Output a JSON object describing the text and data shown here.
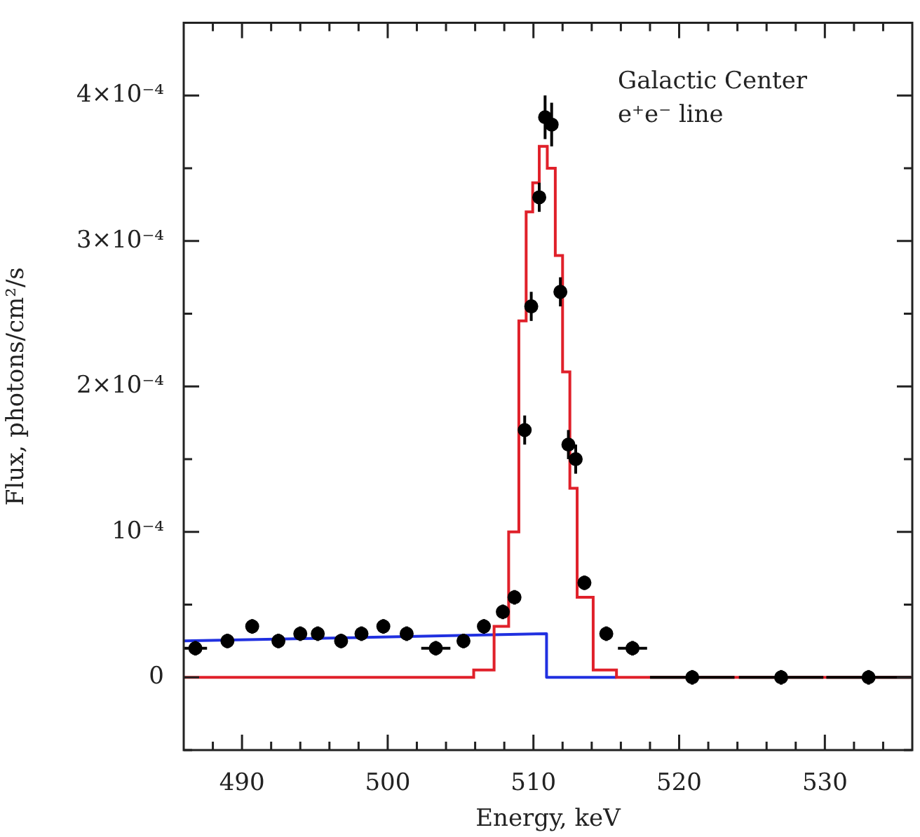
{
  "chart_data": {
    "type": "scatter",
    "xlabel": "Energy, keV",
    "ylabel": "Flux, photons/cm²/s",
    "annotations": [
      "Galactic Center",
      "e⁺e⁻ line"
    ],
    "xlim": [
      486,
      536
    ],
    "ylim": [
      -5e-05,
      0.00045
    ],
    "xticks": [
      {
        "value": 488,
        "label": null
      },
      490,
      {
        "value": 492,
        "label": null
      },
      {
        "value": 494,
        "label": null
      },
      {
        "value": 496,
        "label": null
      },
      {
        "value": 498,
        "label": null
      },
      500,
      {
        "value": 502,
        "label": null
      },
      {
        "value": 504,
        "label": null
      },
      {
        "value": 506,
        "label": null
      },
      {
        "value": 508,
        "label": null
      },
      510,
      {
        "value": 512,
        "label": null
      },
      {
        "value": 514,
        "label": null
      },
      {
        "value": 516,
        "label": null
      },
      {
        "value": 518,
        "label": null
      },
      520,
      {
        "value": 522,
        "label": null
      },
      {
        "value": 524,
        "label": null
      },
      {
        "value": 526,
        "label": null
      },
      {
        "value": 528,
        "label": null
      },
      530,
      {
        "value": 532,
        "label": null
      },
      {
        "value": 534,
        "label": null
      }
    ],
    "yticks": [
      {
        "value": -5e-05,
        "label": null
      },
      {
        "value": 0,
        "label": "0"
      },
      {
        "value": 5e-05,
        "label": null
      },
      {
        "value": 0.0001,
        "label": "10⁻⁴"
      },
      {
        "value": 0.00015,
        "label": null
      },
      {
        "value": 0.0002,
        "label": "2×10⁻⁴"
      },
      {
        "value": 0.00025,
        "label": null
      },
      {
        "value": 0.0003,
        "label": "3×10⁻⁴"
      },
      {
        "value": 0.00035,
        "label": null
      },
      {
        "value": 0.0004,
        "label": "4×10⁻⁴"
      }
    ],
    "series": [
      {
        "type": "step",
        "color": "#e0202a",
        "x": [
          486,
          505.9,
          507.3,
          508.3,
          509.0,
          509.5,
          509.95,
          510.4,
          510.95,
          511.5,
          512.0,
          512.5,
          513.0,
          514.1,
          515.7,
          536
        ],
        "values": [
          0,
          5e-06,
          3.5e-05,
          0.0001,
          0.000245,
          0.00032,
          0.00034,
          0.000365,
          0.00035,
          0.00029,
          0.00021,
          0.00013,
          5.5e-05,
          5e-06,
          0,
          0
        ]
      },
      {
        "type": "line",
        "color": "#2030e0",
        "x": [
          486,
          510.9,
          510.9,
          515.7
        ],
        "values": [
          2.5e-05,
          3e-05,
          0,
          0
        ]
      },
      {
        "color": "#000000",
        "marker": "circle",
        "x": [
          486.8,
          489.0,
          490.7,
          492.5,
          494.0,
          495.2,
          496.8,
          498.2,
          499.7,
          501.3,
          503.3,
          505.2,
          506.6,
          507.9,
          508.7,
          509.4,
          509.85,
          510.4,
          510.8,
          511.25,
          511.85,
          512.4,
          512.9,
          513.5,
          515.0,
          516.8,
          520.9,
          527.0,
          533.0
        ],
        "values": [
          2e-05,
          2.5e-05,
          3.5e-05,
          2.5e-05,
          3e-05,
          3e-05,
          2.5e-05,
          3e-05,
          3.5e-05,
          3e-05,
          2e-05,
          2.5e-05,
          3.5e-05,
          4.5e-05,
          5.5e-05,
          0.00017,
          0.000255,
          0.00033,
          0.000385,
          0.00038,
          0.000265,
          0.00016,
          0.00015,
          6.5e-05,
          3e-05,
          2e-05,
          0,
          0,
          0
        ],
        "errors": [
          5e-06,
          5e-06,
          5e-06,
          5e-06,
          5e-06,
          5e-06,
          5e-06,
          5e-06,
          5e-06,
          5e-06,
          5e-06,
          5e-06,
          5e-06,
          5e-06,
          5e-06,
          1e-05,
          1e-05,
          1e-05,
          1.5e-05,
          1.5e-05,
          1e-05,
          1e-05,
          1e-05,
          5e-06,
          5e-06,
          5e-06,
          5e-06,
          5e-06,
          5e-06
        ],
        "xerrors": [
          0.8,
          null,
          null,
          null,
          null,
          null,
          null,
          null,
          null,
          null,
          1.0,
          null,
          null,
          null,
          null,
          null,
          null,
          null,
          null,
          null,
          null,
          null,
          null,
          null,
          null,
          1.0,
          2.9,
          2.9,
          2.9
        ]
      }
    ]
  }
}
